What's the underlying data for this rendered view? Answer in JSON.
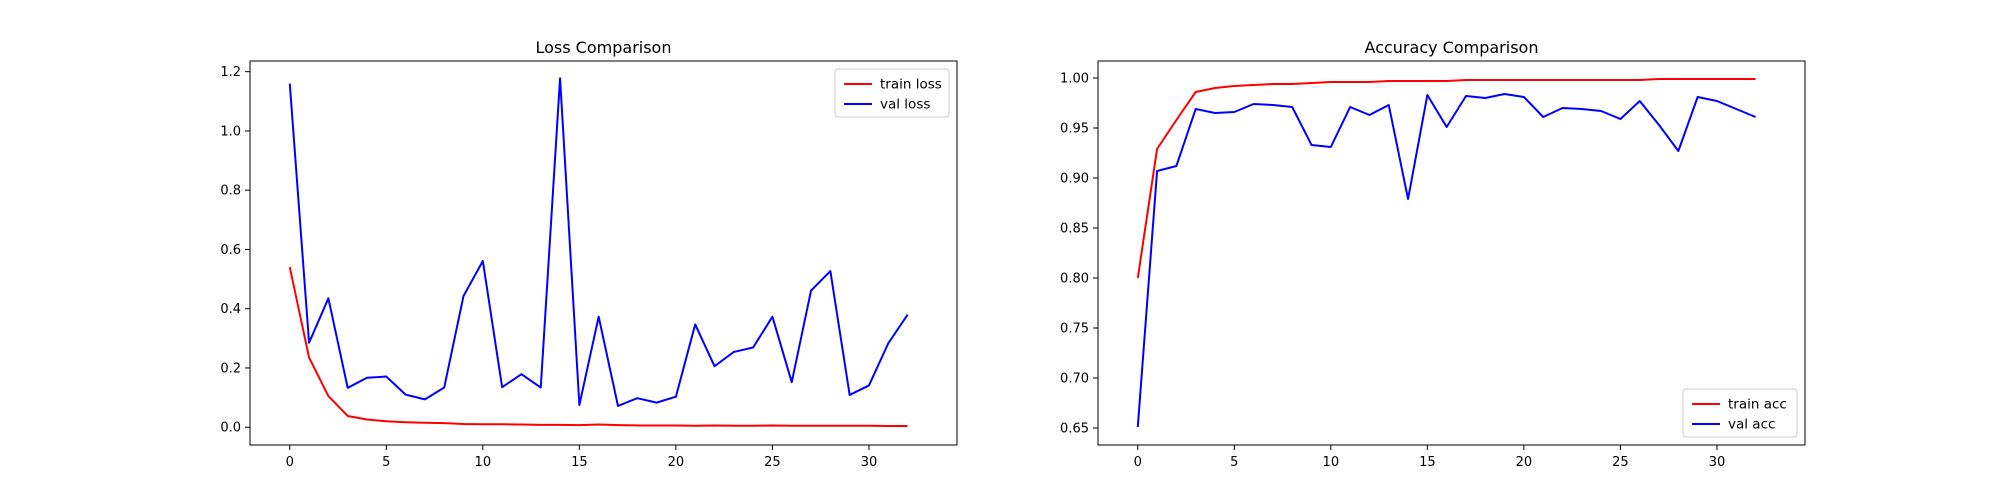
{
  "charts": [
    {
      "type": "line",
      "title": "Loss Comparison",
      "xlabel": "",
      "ylabel": "",
      "xlim": [
        -2.06,
        34.56
      ],
      "ylim": [
        -0.06,
        1.236
      ],
      "xticks": [
        0,
        5,
        10,
        15,
        20,
        25,
        30
      ],
      "xtick_labels": [
        "0",
        "5",
        "10",
        "15",
        "20",
        "25",
        "30"
      ],
      "yticks": [
        0.0,
        0.2,
        0.4,
        0.6,
        0.8,
        1.0,
        1.2
      ],
      "ytick_labels": [
        "0.0",
        "0.2",
        "0.4",
        "0.6",
        "0.8",
        "1.0",
        "1.2"
      ],
      "legend_position": "top-right",
      "x": [
        0,
        1,
        2,
        3,
        4,
        5,
        6,
        7,
        8,
        9,
        10,
        11,
        12,
        13,
        14,
        15,
        16,
        17,
        18,
        19,
        20,
        21,
        22,
        23,
        24,
        25,
        26,
        27,
        28,
        29,
        30,
        31,
        32
      ],
      "series": [
        {
          "name": "train loss",
          "color": "#ff0000",
          "values": [
            0.54,
            0.235,
            0.105,
            0.038,
            0.026,
            0.02,
            0.017,
            0.015,
            0.014,
            0.011,
            0.01,
            0.01,
            0.009,
            0.008,
            0.008,
            0.007,
            0.009,
            0.007,
            0.006,
            0.006,
            0.006,
            0.005,
            0.006,
            0.005,
            0.005,
            0.006,
            0.005,
            0.005,
            0.005,
            0.005,
            0.005,
            0.004,
            0.004
          ]
        },
        {
          "name": "val loss",
          "color": "#0000ff",
          "values": [
            1.16,
            0.285,
            0.435,
            0.133,
            0.167,
            0.171,
            0.11,
            0.094,
            0.134,
            0.443,
            0.561,
            0.135,
            0.179,
            0.134,
            1.178,
            0.075,
            0.373,
            0.072,
            0.098,
            0.083,
            0.103,
            0.347,
            0.206,
            0.254,
            0.269,
            0.373,
            0.152,
            0.461,
            0.527,
            0.109,
            0.141,
            0.283,
            0.38
          ]
        }
      ]
    },
    {
      "type": "line",
      "title": "Accuracy Comparison",
      "xlabel": "",
      "ylabel": "",
      "xlim": [
        -2.06,
        34.56
      ],
      "ylim": [
        0.633,
        1.017
      ],
      "xticks": [
        0,
        5,
        10,
        15,
        20,
        25,
        30
      ],
      "xtick_labels": [
        "0",
        "5",
        "10",
        "15",
        "20",
        "25",
        "30"
      ],
      "yticks": [
        0.65,
        0.7,
        0.75,
        0.8,
        0.85,
        0.9,
        0.95,
        1.0
      ],
      "ytick_labels": [
        "0.65",
        "0.70",
        "0.75",
        "0.80",
        "0.85",
        "0.90",
        "0.95",
        "1.00"
      ],
      "legend_position": "bottom-right",
      "x": [
        0,
        1,
        2,
        3,
        4,
        5,
        6,
        7,
        8,
        9,
        10,
        11,
        12,
        13,
        14,
        15,
        16,
        17,
        18,
        19,
        20,
        21,
        22,
        23,
        24,
        25,
        26,
        27,
        28,
        29,
        30,
        31,
        32
      ],
      "series": [
        {
          "name": "train acc",
          "color": "#ff0000",
          "values": [
            0.8,
            0.929,
            0.958,
            0.986,
            0.99,
            0.992,
            0.993,
            0.994,
            0.994,
            0.995,
            0.996,
            0.996,
            0.996,
            0.997,
            0.997,
            0.997,
            0.997,
            0.998,
            0.998,
            0.998,
            0.998,
            0.998,
            0.998,
            0.998,
            0.998,
            0.998,
            0.998,
            0.999,
            0.999,
            0.999,
            0.999,
            0.999,
            0.999
          ]
        },
        {
          "name": "val acc",
          "color": "#0000ff",
          "values": [
            0.651,
            0.907,
            0.912,
            0.969,
            0.965,
            0.966,
            0.974,
            0.973,
            0.971,
            0.933,
            0.931,
            0.971,
            0.963,
            0.973,
            0.879,
            0.983,
            0.951,
            0.982,
            0.98,
            0.984,
            0.981,
            0.961,
            0.97,
            0.969,
            0.967,
            0.959,
            0.977,
            0.953,
            0.927,
            0.981,
            0.977,
            0.969,
            0.961
          ]
        }
      ]
    }
  ]
}
